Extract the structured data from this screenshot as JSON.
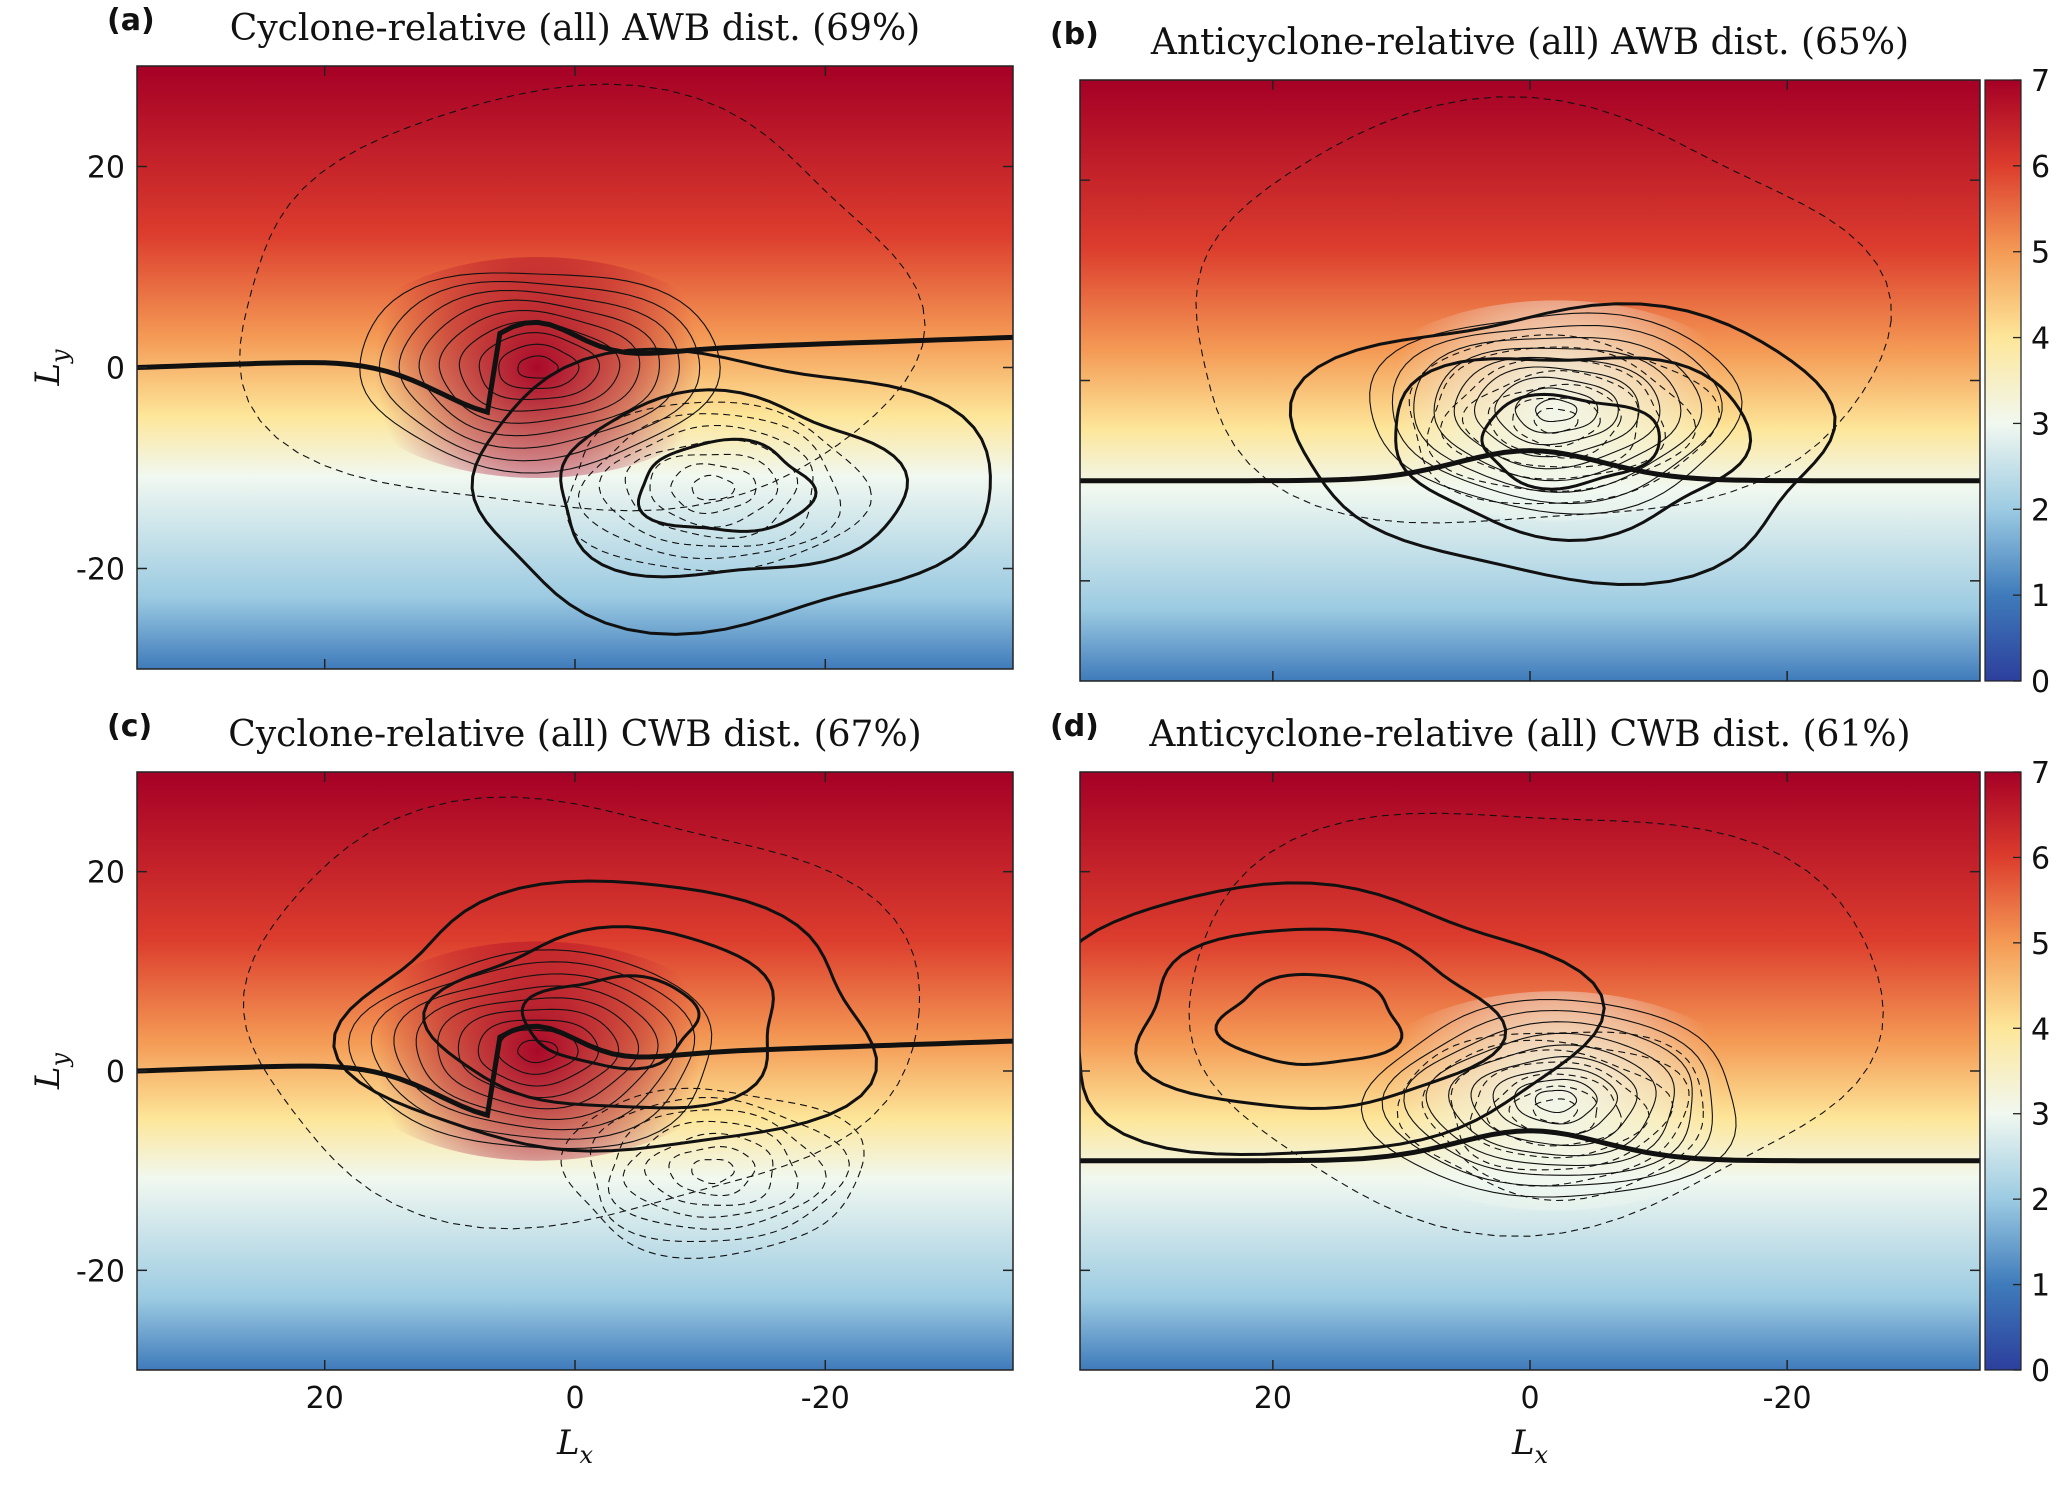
{
  "colors": {
    "colormap": [
      "#2c3f9c",
      "#3f7bbb",
      "#9ccbe2",
      "#f1f8f0",
      "#fde699",
      "#f49a55",
      "#dc3d2d",
      "#a50026"
    ],
    "contour": "#111111"
  },
  "chart_data": [
    {
      "type": "heatmap",
      "panel_label": "(a)",
      "title": "Cyclone-relative (all) AWB dist. (69%)",
      "xlabel": "",
      "ylabel": "L_y",
      "xlim": [
        35,
        -35
      ],
      "ylim": [
        -30,
        30
      ],
      "xticks": [
        20,
        0,
        -20
      ],
      "yticks": [
        20,
        0,
        -20
      ],
      "xtick_labels": [
        "",
        "",
        ""
      ],
      "ytick_labels": [
        "20",
        "0",
        "-20"
      ],
      "show_colorbar": false,
      "anomaly_center": [
        3,
        0
      ],
      "anomaly_sign": 1,
      "ridge_x": 7,
      "interface_left": 0,
      "interface_right": 3,
      "interface_dip": -6,
      "thick_center": [
        -12,
        -12
      ]
    },
    {
      "type": "heatmap",
      "panel_label": "(b)",
      "title": "Anticyclone-relative (all) AWB dist. (65%)",
      "xlabel": "",
      "ylabel": "",
      "xlim": [
        35,
        -35
      ],
      "ylim": [
        -30,
        30
      ],
      "xticks": [
        20,
        0,
        -20
      ],
      "yticks": [
        20,
        0,
        -20
      ],
      "xtick_labels": [
        "",
        "",
        ""
      ],
      "ytick_labels": [
        "",
        "",
        ""
      ],
      "show_colorbar": true,
      "colorbar_ticks": [
        0,
        1,
        2,
        3,
        4,
        5,
        6,
        7
      ],
      "colorbar_range": [
        0,
        7
      ],
      "anomaly_center": [
        -2,
        -3
      ],
      "anomaly_sign": -1,
      "interface_left": -10,
      "interface_right": -10,
      "interface_dip": 3,
      "thick_center": [
        -3,
        -6
      ]
    },
    {
      "type": "heatmap",
      "panel_label": "(c)",
      "title": "Cyclone-relative (all) CWB dist. (67%)",
      "xlabel": "L_x",
      "ylabel": "L_y",
      "xlim": [
        35,
        -35
      ],
      "ylim": [
        -30,
        30
      ],
      "xticks": [
        20,
        0,
        -20
      ],
      "yticks": [
        20,
        0,
        -20
      ],
      "xtick_labels": [
        "20",
        "0",
        "-20"
      ],
      "ytick_labels": [
        "20",
        "0",
        "-20"
      ],
      "show_colorbar": false,
      "anomaly_center": [
        3,
        2
      ],
      "anomaly_sign": 1,
      "ridge_x": 7,
      "interface_left": 0,
      "interface_right": 3,
      "interface_dip": -6,
      "thick_center": [
        -3,
        5
      ]
    },
    {
      "type": "heatmap",
      "panel_label": "(d)",
      "title": "Anticyclone-relative (all) CWB dist. (61%)",
      "xlabel": "L_x",
      "ylabel": "",
      "xlim": [
        35,
        -35
      ],
      "ylim": [
        -30,
        30
      ],
      "xticks": [
        20,
        0,
        -20
      ],
      "yticks": [
        20,
        0,
        -20
      ],
      "xtick_labels": [
        "20",
        "0",
        "-20"
      ],
      "ytick_labels": [
        "",
        "",
        ""
      ],
      "show_colorbar": true,
      "colorbar_ticks": [
        0,
        1,
        2,
        3,
        4,
        5,
        6,
        7
      ],
      "colorbar_range": [
        0,
        7
      ],
      "anomaly_center": [
        -2,
        -3
      ],
      "anomaly_sign": -1,
      "interface_left": -9,
      "interface_right": -9,
      "interface_dip": 3,
      "thick_center": [
        17,
        5
      ]
    }
  ]
}
